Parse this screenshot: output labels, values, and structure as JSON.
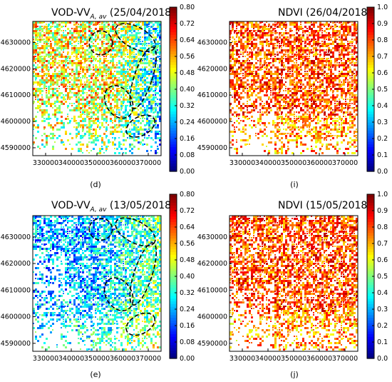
{
  "figure": {
    "colormap": "jet",
    "jet_stops": [
      "#00007f",
      "#0000ff",
      "#007fff",
      "#00ffff",
      "#7fff7f",
      "#ffff00",
      "#ff7f00",
      "#ff0000",
      "#7f0000"
    ],
    "annotation_color": "#000000"
  },
  "chart_data": [
    {
      "type": "heatmap",
      "panel": "(d)",
      "title_prefix": "VOD-VV",
      "title_subscript": "A, av",
      "title_date": "(25/04/2018)",
      "xlim": [
        325000,
        375000
      ],
      "ylim": [
        4587000,
        4638000
      ],
      "x_ticks": [
        "330000",
        "340000",
        "350000",
        "360000",
        "370000"
      ],
      "y_ticks": [
        "4590000",
        "4600000",
        "4610000",
        "4620000",
        "4630000"
      ],
      "colorbar_range": [
        0.0,
        0.8
      ],
      "colorbar_ticks": [
        "0.00",
        "0.08",
        "0.16",
        "0.24",
        "0.32",
        "0.40",
        "0.48",
        "0.56",
        "0.64",
        "0.72",
        "0.80"
      ],
      "dominant_values": "mixed 0.24–0.64, lower (blue) along the eastern outlined zones",
      "dashed_outlines": 5
    },
    {
      "type": "heatmap",
      "panel": "(i)",
      "title_prefix": "NDVI",
      "title_date": "(26/04/2018)",
      "xlim": [
        325000,
        375000
      ],
      "ylim": [
        4587000,
        4638000
      ],
      "x_ticks": [
        "330000",
        "340000",
        "350000",
        "360000",
        "370000"
      ],
      "y_ticks": [
        "4590000",
        "4600000",
        "4610000",
        "4620000",
        "4630000"
      ],
      "colorbar_range": [
        0.0,
        1.0
      ],
      "colorbar_ticks": [
        "0.0",
        "0.1",
        "0.2",
        "0.3",
        "0.4",
        "0.5",
        "0.6",
        "0.7",
        "0.8",
        "0.9",
        "1.0"
      ],
      "dominant_values": "mostly 0.7–0.9 (orange/red)",
      "dashed_outlines": 0
    },
    {
      "type": "heatmap",
      "panel": "(e)",
      "title_prefix": "VOD-VV",
      "title_subscript": "A, av",
      "title_date": "(13/05/2018)",
      "xlim": [
        325000,
        375000
      ],
      "ylim": [
        4587000,
        4638000
      ],
      "x_ticks": [
        "330000",
        "340000",
        "350000",
        "360000",
        "370000"
      ],
      "y_ticks": [
        "4590000",
        "4600000",
        "4610000",
        "4620000",
        "4630000"
      ],
      "colorbar_range": [
        0.0,
        0.8
      ],
      "colorbar_ticks": [
        "0.00",
        "0.08",
        "0.16",
        "0.24",
        "0.32",
        "0.40",
        "0.48",
        "0.56",
        "0.64",
        "0.72",
        "0.80"
      ],
      "dominant_values": "mostly 0.16–0.40 (blue/cyan), higher in south-east",
      "dashed_outlines": 5
    },
    {
      "type": "heatmap",
      "panel": "(j)",
      "title_prefix": "NDVI",
      "title_date": "(15/05/2018)",
      "xlim": [
        325000,
        375000
      ],
      "ylim": [
        4587000,
        4638000
      ],
      "x_ticks": [
        "330000",
        "340000",
        "350000",
        "360000",
        "370000"
      ],
      "y_ticks": [
        "4590000",
        "4600000",
        "4610000",
        "4620000",
        "4630000"
      ],
      "colorbar_range": [
        0.0,
        1.0
      ],
      "colorbar_ticks": [
        "0.0",
        "0.1",
        "0.2",
        "0.3",
        "0.4",
        "0.5",
        "0.6",
        "0.7",
        "0.8",
        "0.9",
        "1.0"
      ],
      "dominant_values": "mostly 0.7–0.9 (orange/red)",
      "dashed_outlines": 0
    }
  ]
}
